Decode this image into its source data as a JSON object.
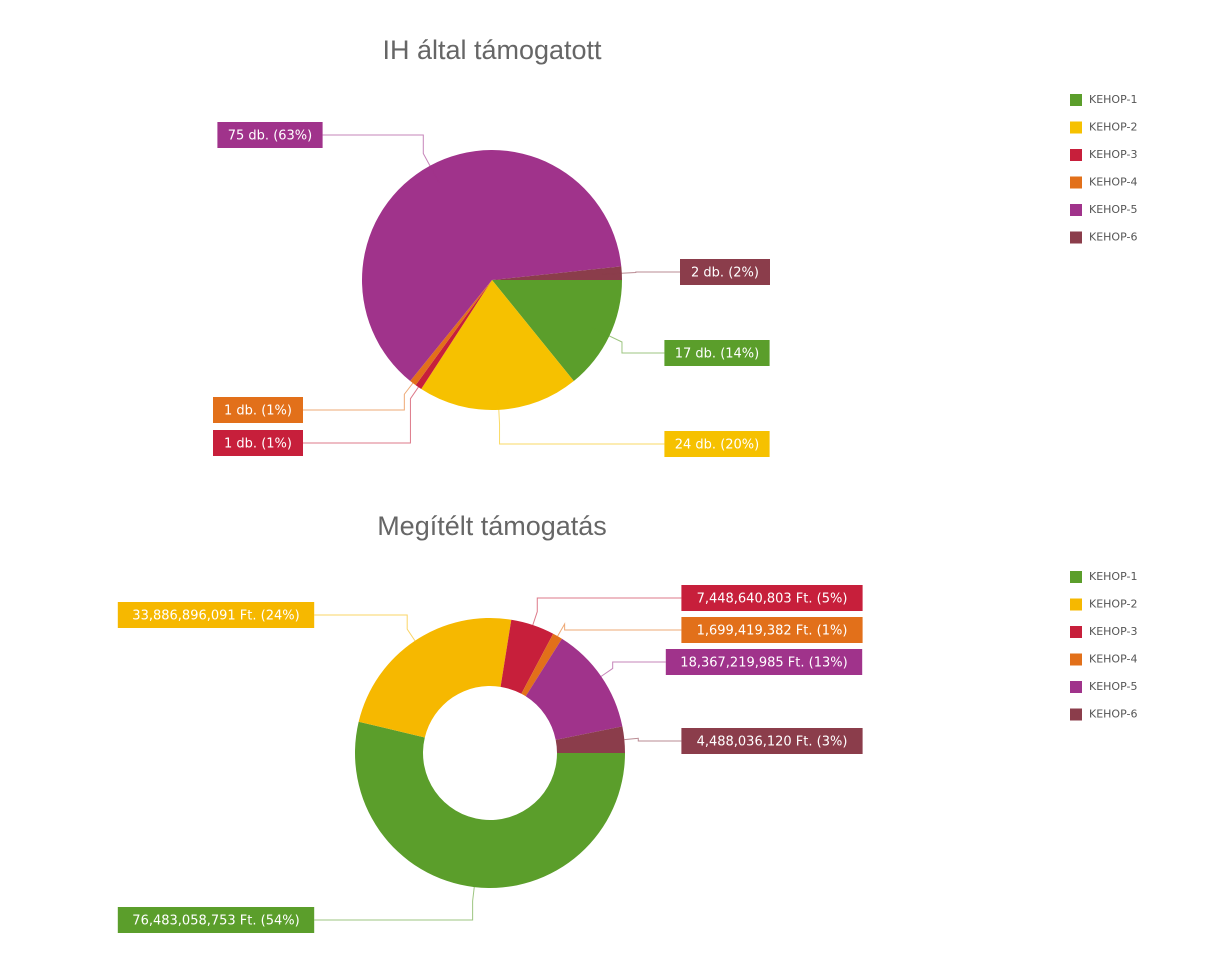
{
  "chart_data": [
    {
      "type": "pie",
      "title": "IH által támogatott",
      "categories": [
        "KEHOP-1",
        "KEHOP-2",
        "KEHOP-3",
        "KEHOP-4",
        "KEHOP-5",
        "KEHOP-6"
      ],
      "values": [
        17,
        24,
        1,
        1,
        75,
        2
      ],
      "value_labels": [
        "17 db. (14%)",
        "24 db. (20%)",
        "1 db. (1%)",
        "1 db. (1%)",
        "75 db. (63%)",
        "2 db. (2%)"
      ],
      "colors": [
        "#5b9e2b",
        "#f6c100",
        "#c71f3b",
        "#e2701a",
        "#a0338b",
        "#8b3d4b"
      ]
    },
    {
      "type": "donut",
      "title": "Megítélt támogatás",
      "categories": [
        "KEHOP-1",
        "KEHOP-2",
        "KEHOP-3",
        "KEHOP-4",
        "KEHOP-5",
        "KEHOP-6"
      ],
      "values": [
        76483058753,
        33886896091,
        7448640803,
        1699419382,
        18367219985,
        4488036120
      ],
      "value_labels": [
        "76,483,058,753 Ft. (54%)",
        "33,886,896,091 Ft. (24%)",
        "7,448,640,803 Ft. (5%)",
        "1,699,419,382 Ft. (1%)",
        "18,367,219,985 Ft. (13%)",
        "4,488,036,120 Ft. (3%)"
      ],
      "colors": [
        "#5b9e2b",
        "#f6b800",
        "#c71f3b",
        "#e2701a",
        "#a0338b",
        "#8b3d4b"
      ]
    }
  ]
}
